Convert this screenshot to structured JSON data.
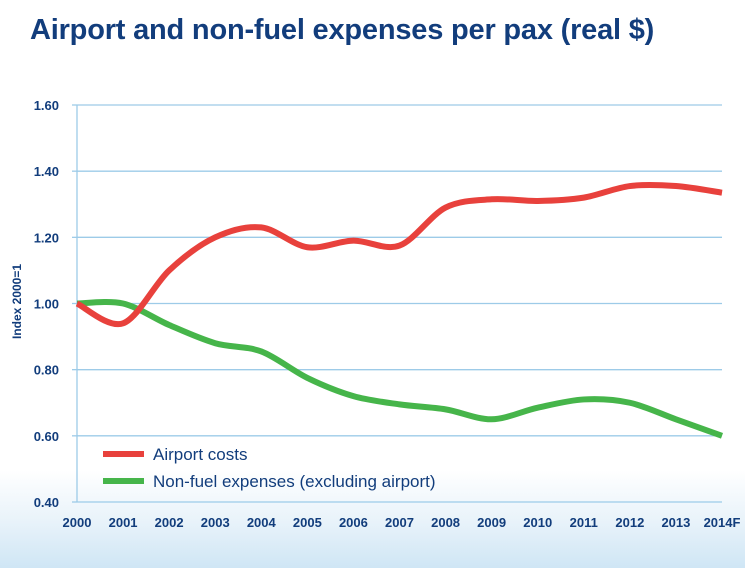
{
  "chart_data": {
    "type": "line",
    "title": "Airport and non-fuel expenses per pax (real $)",
    "ylabel": "Index 2000=1",
    "xlabel": "",
    "categories": [
      "2000",
      "2001",
      "2002",
      "2003",
      "2004",
      "2005",
      "2006",
      "2007",
      "2008",
      "2009",
      "2010",
      "2011",
      "2012",
      "2013",
      "2014F"
    ],
    "ylim": [
      0.4,
      1.6
    ],
    "yticks": [
      "0.40",
      "0.60",
      "0.80",
      "1.00",
      "1.20",
      "1.40",
      "1.60"
    ],
    "grid": true,
    "legend_position": "bottom-left",
    "series": [
      {
        "name": "Airport costs",
        "color": "#e8413c",
        "values": [
          1.0,
          0.94,
          1.1,
          1.2,
          1.23,
          1.17,
          1.19,
          1.175,
          1.29,
          1.315,
          1.31,
          1.32,
          1.355,
          1.355,
          1.335
        ]
      },
      {
        "name": "Non-fuel expenses (excluding airport)",
        "color": "#46b54a",
        "values": [
          1.0,
          1.0,
          0.935,
          0.88,
          0.855,
          0.775,
          0.72,
          0.695,
          0.68,
          0.65,
          0.685,
          0.71,
          0.7,
          0.65,
          0.6
        ]
      }
    ]
  }
}
